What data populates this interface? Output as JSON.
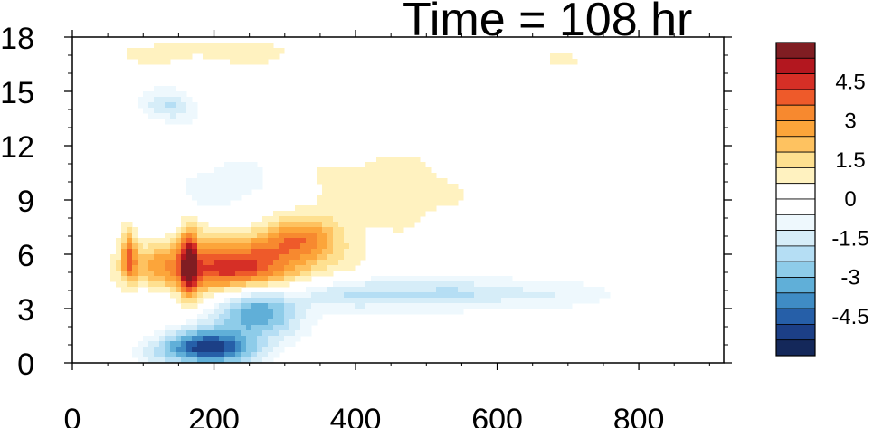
{
  "chart_data": {
    "type": "heatmap",
    "title": "Time = 108 hr",
    "xlabel": "",
    "ylabel": "",
    "xlim": [
      0,
      920
    ],
    "ylim": [
      0,
      18
    ],
    "x_ticks": [
      0,
      200,
      400,
      600,
      800
    ],
    "y_ticks": [
      0,
      3,
      6,
      9,
      12,
      15,
      18
    ],
    "colorbar": {
      "min": -6,
      "max": 6,
      "step": 0.75,
      "tick_labels": [
        "4.5",
        "3",
        "1.5",
        "0",
        "-1.5",
        "-3",
        "-4.5"
      ],
      "colors": [
        "#801d22",
        "#b3171f",
        "#d62f26",
        "#ee5a2a",
        "#f7892f",
        "#fca53a",
        "#fec260",
        "#fee090",
        "#fff2c0",
        "#ffffff",
        "#ffffff",
        "#eef8fd",
        "#d6edf8",
        "#b5def4",
        "#8ecce9",
        "#60afd8",
        "#3f8cc4",
        "#265fa8",
        "#1c3f86",
        "#14285a"
      ]
    },
    "features": [
      {
        "name": "warm band",
        "x_center": 210,
        "y_center": 5.2,
        "x_halfwidth": 120,
        "y_halfwidth": 1.6,
        "peak": 4.6
      },
      {
        "name": "warm band east",
        "x_center": 320,
        "y_center": 6.8,
        "x_halfwidth": 60,
        "y_halfwidth": 1.2,
        "peak": 2.7
      },
      {
        "name": "warm streak",
        "x_center": 80,
        "y_center": 6.0,
        "x_halfwidth": 10,
        "y_halfwidth": 1.5,
        "peak": 2.8
      },
      {
        "name": "warm streak",
        "x_center": 165,
        "y_center": 5.5,
        "x_halfwidth": 12,
        "y_halfwidth": 2.0,
        "peak": 3.6
      },
      {
        "name": "warm mid-level",
        "x_center": 420,
        "y_center": 9.5,
        "x_halfwidth": 150,
        "y_halfwidth": 2.5,
        "peak": 1.0
      },
      {
        "name": "warm upper",
        "x_center": 200,
        "y_center": 17.2,
        "x_halfwidth": 180,
        "y_halfwidth": 0.8,
        "peak": 0.9
      },
      {
        "name": "warm upper east",
        "x_center": 700,
        "y_center": 16.8,
        "x_halfwidth": 100,
        "y_halfwidth": 0.5,
        "peak": 0.6
      },
      {
        "name": "cold low",
        "x_center": 190,
        "y_center": 0.8,
        "x_halfwidth": 70,
        "y_halfwidth": 1.0,
        "peak": -5.2
      },
      {
        "name": "cold ramp",
        "x_center": 260,
        "y_center": 2.6,
        "x_halfwidth": 60,
        "y_halfwidth": 1.2,
        "peak": -3.6
      },
      {
        "name": "cold layer",
        "x_center": 450,
        "y_center": 3.8,
        "x_halfwidth": 300,
        "y_halfwidth": 0.9,
        "peak": -2.0
      },
      {
        "name": "cold upper",
        "x_center": 140,
        "y_center": 14.2,
        "x_halfwidth": 40,
        "y_halfwidth": 0.9,
        "peak": -1.8
      },
      {
        "name": "cold mid",
        "x_center": 230,
        "y_center": 9.8,
        "x_halfwidth": 80,
        "y_halfwidth": 1.5,
        "peak": -1.3
      }
    ]
  }
}
